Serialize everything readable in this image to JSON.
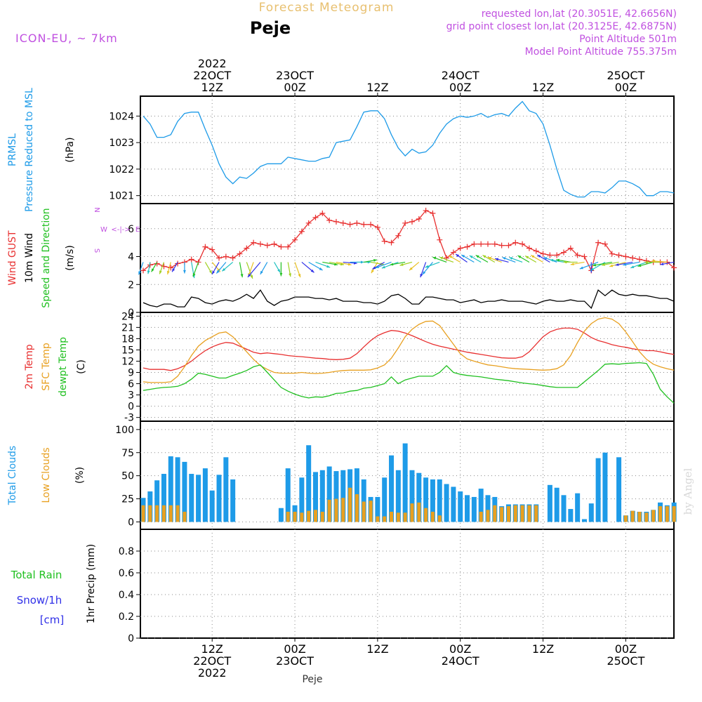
{
  "header": {
    "title": "Forecast Meteogram",
    "place": "Peje",
    "model": "ICON-EU, ~ 7km",
    "info": [
      "requested lon,lat (20.3051E, 42.6656N)",
      "grid point closest lon,lat (20.3125E, 42.6875N)",
      "Point Altitude 501m",
      "Model Point Altitude 755.375m"
    ],
    "footer_place": "Peje",
    "watermark": "by Angel",
    "colors": {
      "title": "#e8c070",
      "info": "#c050e0"
    }
  },
  "time_axis": {
    "top_ticks": [
      {
        "lines": [
          "2022",
          "22OCT",
          "12Z"
        ]
      },
      {
        "lines": [
          "23OCT",
          "00Z"
        ]
      },
      {
        "lines": [
          "12Z"
        ]
      },
      {
        "lines": [
          "24OCT",
          "00Z"
        ]
      },
      {
        "lines": [
          "12Z"
        ]
      },
      {
        "lines": [
          "25OCT",
          "00Z"
        ]
      }
    ],
    "bottom_ticks": [
      {
        "lines": [
          "12Z",
          "22OCT",
          "2022"
        ]
      },
      {
        "lines": [
          "00Z",
          "23OCT"
        ]
      },
      {
        "lines": [
          "12Z"
        ]
      },
      {
        "lines": [
          "00Z",
          "24OCT"
        ]
      },
      {
        "lines": [
          "12Z"
        ]
      },
      {
        "lines": [
          "00Z",
          "25OCT"
        ]
      }
    ]
  },
  "chart_data": [
    {
      "type": "line",
      "panel": "pressure",
      "xlabel": "",
      "ylabel_lines": [
        {
          "text": "PRMSL",
          "color": "#1e9be8"
        },
        {
          "text": "Pressure Reduced to MSL",
          "color": "#1e9be8"
        },
        {
          "text": "(hPa)",
          "color": "#000000"
        }
      ],
      "ylim": [
        1020.7,
        1024.75
      ],
      "yticks": [
        1021,
        1022,
        1023,
        1024
      ],
      "x_hours": "hours since 2022-10-22 00Z, one value per hour starting at hour 2",
      "series": [
        {
          "name": "PRMSL",
          "color": "#1e9be8",
          "values": [
            1024.0,
            1023.7,
            1023.2,
            1023.2,
            1023.3,
            1023.8,
            1024.1,
            1024.15,
            1024.15,
            1023.5,
            1022.9,
            1022.2,
            1021.7,
            1021.45,
            1021.7,
            1021.65,
            1021.85,
            1022.1,
            1022.2,
            1022.2,
            1022.2,
            1022.45,
            1022.4,
            1022.35,
            1022.3,
            1022.3,
            1022.4,
            1022.45,
            1023.0,
            1023.05,
            1023.1,
            1023.6,
            1024.15,
            1024.2,
            1024.2,
            1023.9,
            1023.3,
            1022.8,
            1022.5,
            1022.75,
            1022.6,
            1022.65,
            1022.9,
            1023.35,
            1023.7,
            1023.9,
            1024.0,
            1023.95,
            1024.0,
            1024.1,
            1023.95,
            1024.05,
            1024.1,
            1024.0,
            1024.3,
            1024.55,
            1024.2,
            1024.1,
            1023.7,
            1022.9,
            1022.0,
            1021.2,
            1021.05,
            1020.95,
            1020.95,
            1021.15,
            1021.15,
            1021.1,
            1021.3,
            1021.55,
            1021.55,
            1021.45,
            1021.3,
            1021.0,
            1021.0,
            1021.15,
            1021.15,
            1021.1
          ]
        }
      ]
    },
    {
      "type": "line",
      "panel": "wind",
      "ylabel_lines": [
        {
          "text": "Wind GUST",
          "color": "#e83030"
        },
        {
          "text": "10m Wind",
          "color": "#000000"
        },
        {
          "text": "Speed and Direction",
          "color": "#20c020"
        },
        {
          "text": "(m/s)",
          "color": "#000000"
        }
      ],
      "compass": {
        "n": "N",
        "s": "S",
        "w": "W",
        "e": "E",
        "color": "#c050e0"
      },
      "ylim": [
        0,
        7.8
      ],
      "yticks": [
        0,
        2,
        4,
        6
      ],
      "series": [
        {
          "name": "Wind GUST",
          "color": "#e83030",
          "marker": "+",
          "values": [
            3.0,
            3.4,
            3.5,
            3.3,
            3.2,
            3.5,
            3.6,
            3.8,
            3.6,
            4.7,
            4.5,
            3.9,
            4.0,
            3.9,
            4.2,
            4.6,
            5.0,
            4.9,
            4.8,
            4.9,
            4.7,
            4.7,
            5.2,
            5.8,
            6.4,
            6.8,
            7.1,
            6.6,
            6.5,
            6.4,
            6.3,
            6.4,
            6.3,
            6.3,
            6.1,
            5.1,
            5.0,
            5.5,
            6.4,
            6.5,
            6.7,
            7.3,
            7.1,
            5.2,
            3.9,
            4.3,
            4.6,
            4.7,
            4.9,
            4.9,
            4.9,
            4.9,
            4.8,
            4.8,
            5.0,
            4.9,
            4.6,
            4.4,
            4.2,
            4.1,
            4.1,
            4.3,
            4.6,
            4.1,
            4.0,
            3.0,
            5.0,
            4.9,
            4.2,
            4.1,
            4.0,
            3.9,
            3.8,
            3.7,
            3.6,
            3.6,
            3.6,
            3.2
          ]
        },
        {
          "name": "10m Wind",
          "color": "#000000",
          "values": [
            0.7,
            0.5,
            0.4,
            0.6,
            0.6,
            0.4,
            0.4,
            1.1,
            1.0,
            0.7,
            0.6,
            0.8,
            0.9,
            0.8,
            1.0,
            1.3,
            1.0,
            1.6,
            0.8,
            0.5,
            0.8,
            0.9,
            1.1,
            1.1,
            1.1,
            1.0,
            1.0,
            0.9,
            1.0,
            0.8,
            0.8,
            0.8,
            0.7,
            0.7,
            0.6,
            0.8,
            1.2,
            1.3,
            1.0,
            0.6,
            0.6,
            1.1,
            1.1,
            1.0,
            0.9,
            0.9,
            0.7,
            0.8,
            0.9,
            0.7,
            0.8,
            0.8,
            0.9,
            0.8,
            0.8,
            0.8,
            0.7,
            0.6,
            0.8,
            0.9,
            0.8,
            0.8,
            0.9,
            0.8,
            0.8,
            0.3,
            1.6,
            1.2,
            1.6,
            1.3,
            1.2,
            1.3,
            1.2,
            1.2,
            1.1,
            1.0,
            1.0,
            0.8
          ]
        },
        {
          "name": "10m Wind direction (deg to)",
          "color": "#20c020",
          "values": [
            200,
            190,
            210,
            200,
            195,
            210,
            180,
            170,
            200,
            150,
            140,
            210,
            220,
            230,
            170,
            160,
            200,
            220,
            210,
            150,
            180,
            170,
            160,
            130,
            120,
            110,
            100,
            100,
            100,
            95,
            90,
            90,
            80,
            100,
            210,
            240,
            250,
            250,
            260,
            255,
            230,
            200,
            220,
            250,
            290,
            290,
            300,
            305,
            300,
            300,
            300,
            300,
            290,
            285,
            290,
            290,
            300,
            300,
            300,
            300,
            290,
            280,
            280,
            270,
            260,
            180,
            250,
            240,
            260,
            260,
            255,
            260,
            260,
            250,
            255,
            270,
            275,
            260
          ]
        }
      ]
    },
    {
      "type": "line",
      "panel": "temperature",
      "ylabel_lines": [
        {
          "text": "2m Temp",
          "color": "#e83030"
        },
        {
          "text": "SFC Temp",
          "color": "#e8a020"
        },
        {
          "text": "dewpt Temp",
          "color": "#20c020"
        },
        {
          "text": "(C)",
          "color": "#000000"
        }
      ],
      "ylim": [
        -4,
        25
      ],
      "yticks": [
        -3,
        0,
        3,
        6,
        9,
        12,
        15,
        18,
        21,
        24
      ],
      "series": [
        {
          "name": "2m Temp",
          "color": "#e83030",
          "values": [
            10.2,
            9.8,
            9.8,
            9.8,
            9.5,
            10.0,
            10.8,
            12.0,
            13.5,
            14.8,
            15.8,
            16.5,
            17.0,
            16.8,
            16.0,
            15.2,
            14.4,
            14.0,
            14.2,
            14.0,
            13.8,
            13.5,
            13.3,
            13.2,
            13.0,
            12.8,
            12.7,
            12.5,
            12.4,
            12.5,
            12.8,
            14.0,
            15.8,
            17.5,
            18.8,
            19.6,
            20.2,
            20.0,
            19.5,
            18.8,
            18.0,
            17.2,
            16.5,
            16.0,
            15.6,
            15.2,
            14.8,
            14.4,
            14.1,
            13.8,
            13.5,
            13.2,
            12.9,
            12.8,
            12.8,
            13.2,
            14.5,
            16.5,
            18.5,
            19.8,
            20.5,
            20.8,
            20.8,
            20.5,
            19.5,
            18.3,
            17.5,
            17.0,
            16.4,
            16.0,
            15.7,
            15.3,
            15.0,
            14.8,
            14.8,
            14.5,
            14.1,
            13.8
          ]
        },
        {
          "name": "SFC Temp",
          "color": "#e8a020",
          "values": [
            6.5,
            6.3,
            6.3,
            6.3,
            6.5,
            8.0,
            10.5,
            13.5,
            16.0,
            17.5,
            18.5,
            19.5,
            19.8,
            18.5,
            16.5,
            14.5,
            12.5,
            10.8,
            9.8,
            9.0,
            8.8,
            8.8,
            8.8,
            9.0,
            8.8,
            8.7,
            8.8,
            9.0,
            9.3,
            9.5,
            9.6,
            9.6,
            9.6,
            9.7,
            10.2,
            11.0,
            12.8,
            15.5,
            18.5,
            20.5,
            21.8,
            22.6,
            22.7,
            21.5,
            19.0,
            16.5,
            14.0,
            12.6,
            12.0,
            11.5,
            11.0,
            10.8,
            10.5,
            10.2,
            10.0,
            9.9,
            9.8,
            9.7,
            9.6,
            9.7,
            10.0,
            11.0,
            13.5,
            17.0,
            20.0,
            22.0,
            23.2,
            23.6,
            23.2,
            22.0,
            19.8,
            17.2,
            14.5,
            12.5,
            11.2,
            10.5,
            10.0,
            9.6
          ]
        },
        {
          "name": "dewpt Temp",
          "color": "#20c020",
          "values": [
            4.2,
            4.5,
            4.8,
            5.0,
            5.1,
            5.3,
            6.0,
            7.2,
            8.8,
            8.5,
            8.0,
            7.5,
            7.5,
            8.2,
            8.8,
            9.5,
            10.5,
            11.0,
            9.0,
            7.0,
            5.0,
            4.0,
            3.2,
            2.6,
            2.2,
            2.5,
            2.4,
            2.8,
            3.4,
            3.5,
            4.0,
            4.2,
            4.8,
            5.0,
            5.5,
            6.0,
            7.8,
            6.0,
            7.0,
            7.5,
            8.0,
            8.0,
            8.0,
            9.0,
            10.8,
            9.0,
            8.5,
            8.2,
            8.0,
            7.8,
            7.5,
            7.2,
            7.0,
            6.8,
            6.5,
            6.2,
            6.0,
            5.8,
            5.5,
            5.2,
            5.0,
            5.0,
            5.0,
            5.0,
            6.5,
            8.0,
            9.5,
            11.2,
            11.3,
            11.2,
            11.4,
            11.5,
            11.6,
            11.4,
            8.5,
            4.5,
            2.5,
            0.8
          ]
        }
      ]
    },
    {
      "type": "bar",
      "panel": "clouds",
      "ylabel_lines": [
        {
          "text": "Total Clouds",
          "color": "#1e9be8"
        },
        {
          "text": "Low Clouds",
          "color": "#e8a020"
        },
        {
          "text": "(%)",
          "color": "#000000"
        }
      ],
      "ylim": [
        -8,
        109
      ],
      "yticks": [
        0,
        25,
        50,
        75,
        100
      ],
      "series": [
        {
          "name": "Total Clouds",
          "color": "#1e9be8",
          "values": [
            26,
            33,
            45,
            52,
            71,
            70,
            65,
            52,
            51,
            58,
            34,
            51,
            70,
            46,
            0,
            0,
            0,
            0,
            0,
            0,
            15,
            58,
            18,
            48,
            83,
            54,
            56,
            60,
            55,
            56,
            57,
            58,
            46,
            27,
            27,
            48,
            72,
            56,
            85,
            56,
            53,
            48,
            46,
            46,
            41,
            38,
            33,
            29,
            27,
            36,
            29,
            27,
            17,
            19,
            19,
            19,
            19,
            19,
            0,
            40,
            37,
            29,
            14,
            31,
            3,
            20,
            69,
            75,
            0,
            70,
            7,
            12,
            11,
            11,
            13,
            21,
            18,
            21
          ]
        },
        {
          "name": "Low Clouds",
          "color": "#e8a020",
          "values": [
            18,
            18,
            18,
            18,
            18,
            18,
            11,
            0,
            0,
            0,
            0,
            0,
            0,
            0,
            0,
            0,
            0,
            0,
            0,
            0,
            0,
            11,
            11,
            10,
            12,
            13,
            11,
            24,
            25,
            26,
            37,
            30,
            22,
            23,
            6,
            6,
            11,
            10,
            10,
            20,
            21,
            15,
            11,
            7,
            0,
            0,
            0,
            0,
            0,
            11,
            13,
            18,
            16,
            17,
            18,
            18,
            18,
            18,
            0,
            0,
            0,
            0,
            0,
            0,
            0,
            0,
            0,
            0,
            0,
            0,
            7,
            12,
            11,
            10,
            13,
            17,
            17,
            17
          ]
        }
      ]
    },
    {
      "type": "line",
      "panel": "precip",
      "ylabel_lines": [
        {
          "text": "1hr Precip (mm)",
          "color": "#000000"
        }
      ],
      "legend_lines": [
        {
          "text": "Total  Rain",
          "color": "#20c020"
        },
        {
          "text": "Snow/1h",
          "color": "#3030e8"
        },
        {
          "text": "[cm]",
          "color": "#3030e8"
        }
      ],
      "ylim": [
        0,
        1.0
      ],
      "yticks": [
        "0",
        "0.2",
        "0.4",
        "0.6",
        "0.8"
      ],
      "series": [
        {
          "name": "1hr Precip",
          "color": "#000000",
          "values": [
            0,
            0,
            0,
            0,
            0,
            0,
            0,
            0,
            0,
            0,
            0,
            0,
            0,
            0,
            0,
            0,
            0,
            0,
            0,
            0,
            0,
            0,
            0,
            0,
            0,
            0,
            0,
            0,
            0,
            0,
            0,
            0,
            0,
            0,
            0,
            0,
            0,
            0,
            0,
            0,
            0,
            0,
            0,
            0,
            0,
            0,
            0,
            0,
            0,
            0,
            0,
            0,
            0,
            0,
            0,
            0,
            0,
            0,
            0,
            0,
            0,
            0,
            0,
            0,
            0,
            0,
            0,
            0,
            0,
            0,
            0,
            0,
            0,
            0,
            0,
            0,
            0,
            0
          ]
        }
      ]
    }
  ]
}
